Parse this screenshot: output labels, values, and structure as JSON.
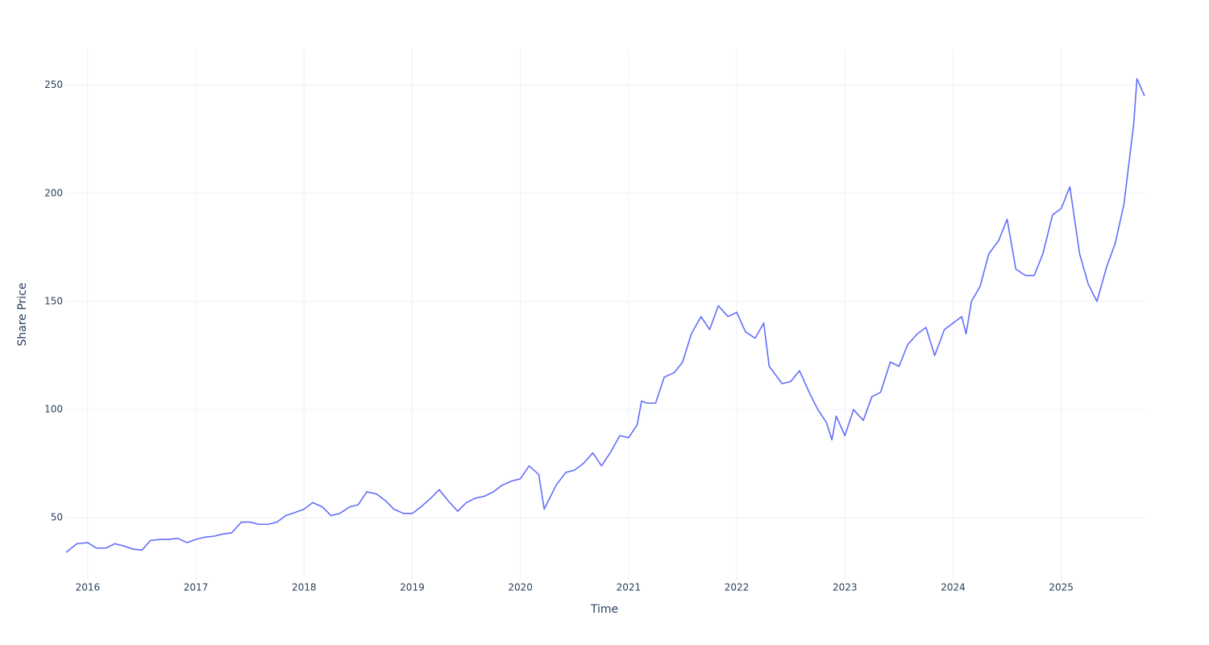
{
  "chart_data": {
    "type": "line",
    "x_label": "Time",
    "y_label": "Share Price",
    "color": "#636efa",
    "grid": true,
    "xlim": [
      2015.8,
      2025.77
    ],
    "xticks": [
      2016,
      2017,
      2018,
      2019,
      2020,
      2021,
      2022,
      2023,
      2024,
      2025
    ],
    "ylim": [
      21,
      267
    ],
    "yticks": [
      50,
      100,
      150,
      200,
      250
    ],
    "x": [
      2015.8,
      2015.9,
      2016.0,
      2016.08,
      2016.17,
      2016.25,
      2016.33,
      2016.42,
      2016.5,
      2016.58,
      2016.67,
      2016.75,
      2016.83,
      2016.92,
      2017.0,
      2017.08,
      2017.17,
      2017.25,
      2017.33,
      2017.42,
      2017.5,
      2017.58,
      2017.67,
      2017.75,
      2017.83,
      2017.92,
      2018.0,
      2018.08,
      2018.17,
      2018.25,
      2018.33,
      2018.42,
      2018.5,
      2018.58,
      2018.67,
      2018.75,
      2018.83,
      2018.92,
      2019.0,
      2019.08,
      2019.17,
      2019.25,
      2019.33,
      2019.42,
      2019.5,
      2019.58,
      2019.67,
      2019.75,
      2019.83,
      2019.92,
      2020.0,
      2020.08,
      2020.17,
      2020.22,
      2020.25,
      2020.33,
      2020.42,
      2020.5,
      2020.58,
      2020.67,
      2020.75,
      2020.83,
      2020.92,
      2021.0,
      2021.08,
      2021.12,
      2021.17,
      2021.25,
      2021.33,
      2021.42,
      2021.5,
      2021.58,
      2021.67,
      2021.75,
      2021.83,
      2021.92,
      2022.0,
      2022.08,
      2022.17,
      2022.25,
      2022.3,
      2022.42,
      2022.5,
      2022.58,
      2022.67,
      2022.75,
      2022.83,
      2022.88,
      2022.92,
      2023.0,
      2023.08,
      2023.17,
      2023.25,
      2023.33,
      2023.42,
      2023.5,
      2023.58,
      2023.67,
      2023.75,
      2023.83,
      2023.92,
      2024.0,
      2024.08,
      2024.12,
      2024.17,
      2024.25,
      2024.33,
      2024.42,
      2024.5,
      2024.58,
      2024.67,
      2024.75,
      2024.83,
      2024.92,
      2025.0,
      2025.08,
      2025.17,
      2025.25,
      2025.33,
      2025.42,
      2025.5,
      2025.58,
      2025.67,
      2025.7,
      2025.77
    ],
    "values": [
      34,
      38,
      38.5,
      36,
      36,
      38,
      37,
      35.5,
      35,
      39.5,
      40,
      40,
      40.5,
      38.5,
      40,
      41,
      41.5,
      42.5,
      43,
      48,
      48,
      47,
      47,
      48,
      51,
      52.5,
      54,
      57,
      55,
      51,
      52,
      55,
      56,
      62,
      61,
      58,
      54,
      52,
      52,
      55,
      59,
      63,
      58,
      53,
      57,
      59,
      60,
      62,
      65,
      67,
      68,
      74,
      70,
      54,
      57,
      65,
      71,
      72,
      75,
      80,
      74,
      80,
      88,
      87,
      93,
      104,
      103,
      103,
      115,
      117,
      122,
      135,
      143,
      137,
      148,
      143,
      145,
      136,
      133,
      140,
      120,
      112,
      113,
      118,
      108,
      100,
      94,
      86,
      97,
      88,
      100,
      95,
      106,
      108,
      122,
      120,
      130,
      135,
      138,
      125,
      137,
      140,
      143,
      135,
      150,
      157,
      172,
      178,
      188,
      165,
      162,
      162,
      172,
      190,
      193,
      203,
      172,
      158,
      150,
      166,
      177,
      195,
      232,
      253,
      245
    ]
  }
}
